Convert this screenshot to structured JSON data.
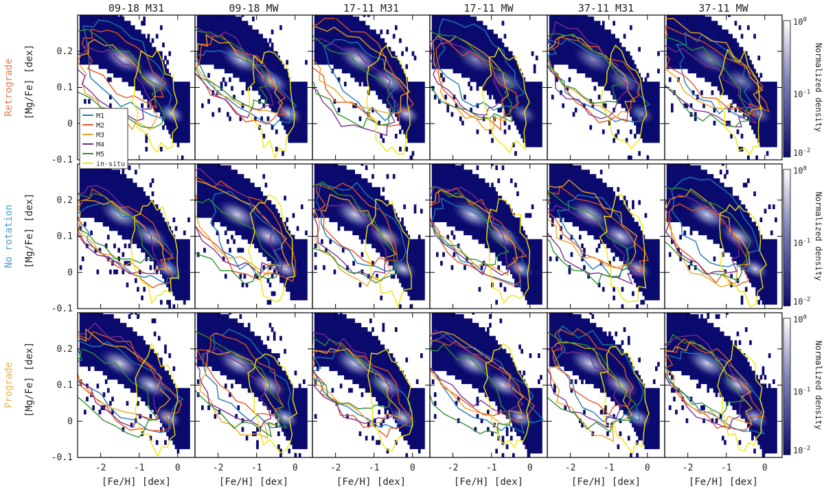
{
  "chart_data": {
    "type": "heatmap",
    "title": "",
    "columns": [
      "09-18 M31",
      "09-18 MW",
      "17-11 M31",
      "17-11 MW",
      "37-11 M31",
      "37-11 MW"
    ],
    "rows": [
      {
        "label": "Retrograde",
        "color": "#e07a4a"
      },
      {
        "label": "No rotation",
        "color": "#4a9cc8"
      },
      {
        "label": "Prograde",
        "color": "#e6b24a"
      }
    ],
    "xlabel": "[Fe/H] [dex]",
    "ylabel": "[Mg/Fe] [dex]",
    "xlim": [
      -2.6,
      0.45
    ],
    "ylim": [
      -0.1,
      0.3
    ],
    "xticks": [
      -2,
      -1,
      0
    ],
    "yticks": [
      -0.1,
      0,
      0.1,
      0.2
    ],
    "colorbar": {
      "label": "Normalized density",
      "scale": "log",
      "range": [
        0.01,
        1
      ],
      "ticks": [
        "10^0",
        "10^-1",
        "10^-2"
      ]
    },
    "colormap": {
      "low": "#0b0b6e",
      "high": "#ffffff"
    },
    "legend": {
      "placement": "lower-left of first panel",
      "entries": [
        {
          "name": "M1",
          "color": "#1f77b4"
        },
        {
          "name": "M2",
          "color": "#e2531f"
        },
        {
          "name": "M3",
          "color": "#eda21f"
        },
        {
          "name": "M4",
          "color": "#7b2d8e"
        },
        {
          "name": "M5",
          "color": "#2f8f2f"
        },
        {
          "name": "in-situ",
          "color": "#f2e600"
        }
      ]
    },
    "density_ridge": [
      {
        "feh": -2.2,
        "mgfe": 0.2
      },
      {
        "feh": -1.5,
        "mgfe": 0.16
      },
      {
        "feh": -1.0,
        "mgfe": 0.12
      },
      {
        "feh": -0.5,
        "mgfe": 0.06
      },
      {
        "feh": -0.1,
        "mgfe": -0.02
      }
    ]
  }
}
